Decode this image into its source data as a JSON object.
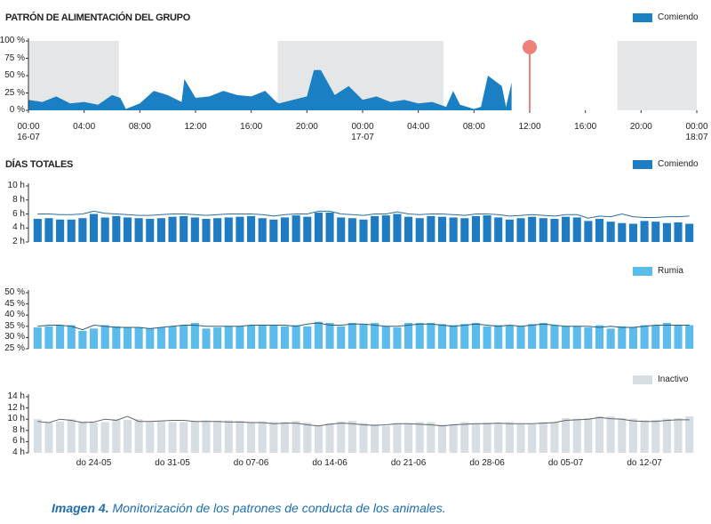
{
  "chart_data": [
    {
      "type": "area",
      "title": "PATRÓN DE ALIMENTACIÓN DEL GRUPO",
      "series": [
        {
          "name": "Comiendo",
          "color": "#1b7fc4",
          "x": [
            0,
            1,
            2,
            3,
            4,
            5,
            6,
            6.6,
            7,
            8,
            9,
            10,
            11,
            11.2,
            12,
            13,
            14,
            15,
            16,
            17,
            17.8,
            18,
            19,
            20,
            20.5,
            21,
            22,
            23,
            24,
            25,
            26,
            27,
            28,
            29,
            30,
            30.5,
            31,
            32,
            32.5,
            33,
            34,
            34.3,
            34.7
          ],
          "values": [
            15,
            12,
            20,
            10,
            12,
            8,
            22,
            18,
            2,
            10,
            28,
            22,
            12,
            45,
            18,
            20,
            28,
            22,
            20,
            28,
            12,
            10,
            15,
            20,
            58,
            58,
            22,
            35,
            15,
            20,
            12,
            15,
            10,
            12,
            5,
            28,
            8,
            2,
            5,
            50,
            35,
            5,
            40
          ]
        }
      ],
      "xlim": [
        0,
        48
      ],
      "xticks": [
        {
          "value": 0,
          "label": "00:00 16-07"
        },
        {
          "value": 4,
          "label": "04:00"
        },
        {
          "value": 8,
          "label": "08:00"
        },
        {
          "value": 12,
          "label": "12:00"
        },
        {
          "value": 16,
          "label": "16:00"
        },
        {
          "value": 20,
          "label": "20:00"
        },
        {
          "value": 24,
          "label": "00:00 17-07"
        },
        {
          "value": 28,
          "label": "04:00"
        },
        {
          "value": 32,
          "label": "08:00"
        },
        {
          "value": 36,
          "label": "12:00"
        },
        {
          "value": 40,
          "label": "16:00"
        },
        {
          "value": 44,
          "label": "20:00"
        },
        {
          "value": 48,
          "label": "00:00 18:07"
        }
      ],
      "ylim": [
        0,
        100
      ],
      "yticks": [
        {
          "value": 0,
          "label": "0 %"
        },
        {
          "value": 25,
          "label": "25 %"
        },
        {
          "value": 50,
          "label": "50 %"
        },
        {
          "value": 75,
          "label": "75 %"
        },
        {
          "value": 100,
          "label": "100 %"
        }
      ],
      "shaded_ranges": [
        [
          0,
          6.5
        ],
        [
          17.9,
          29.8
        ],
        [
          42.3,
          48
        ]
      ],
      "shade_color": "#e5e6e8",
      "marker_x": 36,
      "marker_color": "#ee8077"
    },
    {
      "type": "bar",
      "title": "DÍAS TOTALES",
      "legend": "Comiendo",
      "color": "#1f7cc2",
      "line_color": "#2b6e9e",
      "values": [
        5.3,
        5.4,
        5.2,
        5.2,
        5.4,
        6.0,
        5.5,
        5.7,
        5.5,
        5.4,
        5.3,
        5.4,
        5.6,
        5.7,
        5.5,
        5.3,
        5.4,
        5.5,
        5.6,
        5.7,
        5.4,
        5.2,
        5.5,
        5.8,
        5.6,
        6.2,
        6.2,
        5.5,
        5.4,
        5.2,
        5.7,
        5.8,
        6.0,
        5.6,
        5.4,
        5.7,
        5.6,
        5.5,
        5.4,
        5.7,
        5.8,
        5.5,
        5.2,
        5.4,
        5.6,
        5.4,
        5.3,
        5.6,
        5.5,
        5.0,
        5.3,
        4.9,
        4.7,
        4.6,
        5.0,
        4.9,
        4.7,
        4.8,
        4.6
      ],
      "line_values": [
        6.0,
        6.0,
        5.9,
        5.9,
        6.0,
        6.4,
        6.1,
        6.0,
        5.9,
        5.8,
        5.8,
        5.9,
        6.0,
        6.0,
        5.9,
        5.8,
        5.9,
        6.0,
        6.0,
        6.0,
        5.9,
        5.7,
        5.9,
        6.0,
        6.0,
        6.4,
        6.4,
        6.0,
        5.9,
        5.8,
        6.0,
        6.0,
        6.3,
        6.0,
        5.9,
        6.0,
        6.0,
        5.9,
        5.8,
        6.0,
        6.0,
        5.9,
        5.7,
        5.8,
        5.9,
        5.8,
        5.7,
        5.9,
        5.9,
        5.4,
        5.7,
        5.6,
        6.0,
        5.6,
        5.5,
        5.5,
        5.6,
        5.6,
        5.7
      ],
      "ylim": [
        2,
        10
      ],
      "yticks": [
        {
          "value": 2,
          "label": "2 h"
        },
        {
          "value": 4,
          "label": "4 h"
        },
        {
          "value": 6,
          "label": "6 h"
        },
        {
          "value": 8,
          "label": "8 h"
        },
        {
          "value": 10,
          "label": "10 h"
        }
      ]
    },
    {
      "type": "bar",
      "legend": "Rumia",
      "color": "#5bbbea",
      "line_color": "#2d5c7c",
      "values": [
        34.5,
        35,
        35.5,
        35.5,
        33,
        34,
        35.5,
        35,
        34.5,
        34.5,
        34,
        34.5,
        35,
        35.5,
        36.5,
        34,
        34.5,
        35,
        35,
        35.5,
        35.5,
        35.5,
        35,
        35.5,
        35,
        37,
        36.5,
        35,
        36.5,
        36,
        36.5,
        35,
        34.5,
        36.5,
        36.5,
        36.5,
        36,
        35.5,
        36,
        36.5,
        35,
        35.5,
        35.5,
        35,
        36,
        36.5,
        35.5,
        35,
        35,
        34.5,
        35.5,
        34,
        35,
        34.5,
        35.5,
        35.5,
        36.5,
        35.5,
        35.5
      ],
      "line_values": [
        35,
        35.5,
        35.5,
        35,
        33.5,
        35.5,
        35,
        34.5,
        34.5,
        34.5,
        34,
        34.5,
        35,
        35.5,
        35.5,
        35,
        35,
        35,
        35,
        35.5,
        35.5,
        35.5,
        35.5,
        35,
        36,
        36.5,
        35.5,
        35.5,
        36,
        36,
        35.5,
        35,
        35,
        35.5,
        36,
        36,
        35.5,
        35,
        35.5,
        36,
        35.5,
        35,
        35.5,
        35,
        35.5,
        36,
        35.5,
        35,
        35,
        35,
        34.5,
        35,
        34.5,
        34.5,
        35,
        35.5,
        35.5,
        35.5,
        35.5
      ],
      "ylim": [
        25,
        50
      ],
      "yticks": [
        {
          "value": 25,
          "label": "25 %"
        },
        {
          "value": 30,
          "label": "30 %"
        },
        {
          "value": 35,
          "label": "35 %"
        },
        {
          "value": 40,
          "label": "40 %"
        },
        {
          "value": 45,
          "label": "45 %"
        },
        {
          "value": 50,
          "label": "50 %"
        }
      ]
    },
    {
      "type": "bar",
      "legend": "Inactivo",
      "color": "#d6dee3",
      "line_color": "#666666",
      "categories": [
        null,
        null,
        null,
        null,
        null,
        "do 24-05",
        null,
        null,
        null,
        null,
        null,
        null,
        "do 31-05",
        null,
        null,
        null,
        null,
        null,
        null,
        "do 07-06",
        null,
        null,
        null,
        null,
        null,
        null,
        "do 14-06",
        null,
        null,
        null,
        null,
        null,
        null,
        "do 21-06",
        null,
        null,
        null,
        null,
        null,
        null,
        "do 28-06",
        null,
        null,
        null,
        null,
        null,
        null,
        "do 05-07",
        null,
        null,
        null,
        null,
        null,
        null,
        "do 12-07",
        null,
        null,
        null,
        null
      ],
      "values": [
        10,
        9.4,
        9.6,
        10,
        9.6,
        9.4,
        9.5,
        10,
        9.9,
        10,
        9.5,
        9.6,
        9.5,
        9.5,
        9.6,
        9.8,
        9.7,
        9.8,
        9.7,
        9.5,
        9.6,
        9.5,
        9.5,
        9.7,
        9.4,
        8.9,
        9.3,
        9.6,
        9.7,
        9.3,
        9.1,
        8.8,
        9.3,
        9.3,
        9.5,
        9.5,
        9.0,
        9.1,
        9.5,
        9.3,
        9.4,
        9.3,
        9.5,
        9.1,
        9.1,
        9.5,
        9.5,
        10.2,
        10.1,
        10.2,
        10.5,
        10.5,
        10.2,
        10.1,
        9.8,
        9.9,
        10.1,
        10.2,
        10.5
      ],
      "line_values": [
        9.6,
        9.4,
        10,
        9.8,
        9.4,
        9.5,
        10,
        9.8,
        10.5,
        9.6,
        9.6,
        9.7,
        9.8,
        9.8,
        9.6,
        9.6,
        9.6,
        9.5,
        9.5,
        9.4,
        9.4,
        9.2,
        9.3,
        9.3,
        9.0,
        8.8,
        9.1,
        9.3,
        9.2,
        9.0,
        8.9,
        9.0,
        9.2,
        9.2,
        9.1,
        9.0,
        8.8,
        9.0,
        9.1,
        9.2,
        9.2,
        9.3,
        9.2,
        9.2,
        9.2,
        9.3,
        9.4,
        9.8,
        9.9,
        10.0,
        10.3,
        10.1,
        10.0,
        9.7,
        9.6,
        9.6,
        9.8,
        9.9,
        9.9
      ],
      "ylim": [
        4,
        14
      ],
      "yticks": [
        {
          "value": 4,
          "label": "4 h"
        },
        {
          "value": 6,
          "label": "6 h"
        },
        {
          "value": 8,
          "label": "8 h"
        },
        {
          "value": 10,
          "label": "10 h"
        },
        {
          "value": 12,
          "label": "12 h"
        },
        {
          "value": 14,
          "label": "14 h"
        }
      ]
    }
  ],
  "caption": {
    "label": "Imagen 4.",
    "text": "Monitorización de los patrones de conducta de los animales."
  }
}
